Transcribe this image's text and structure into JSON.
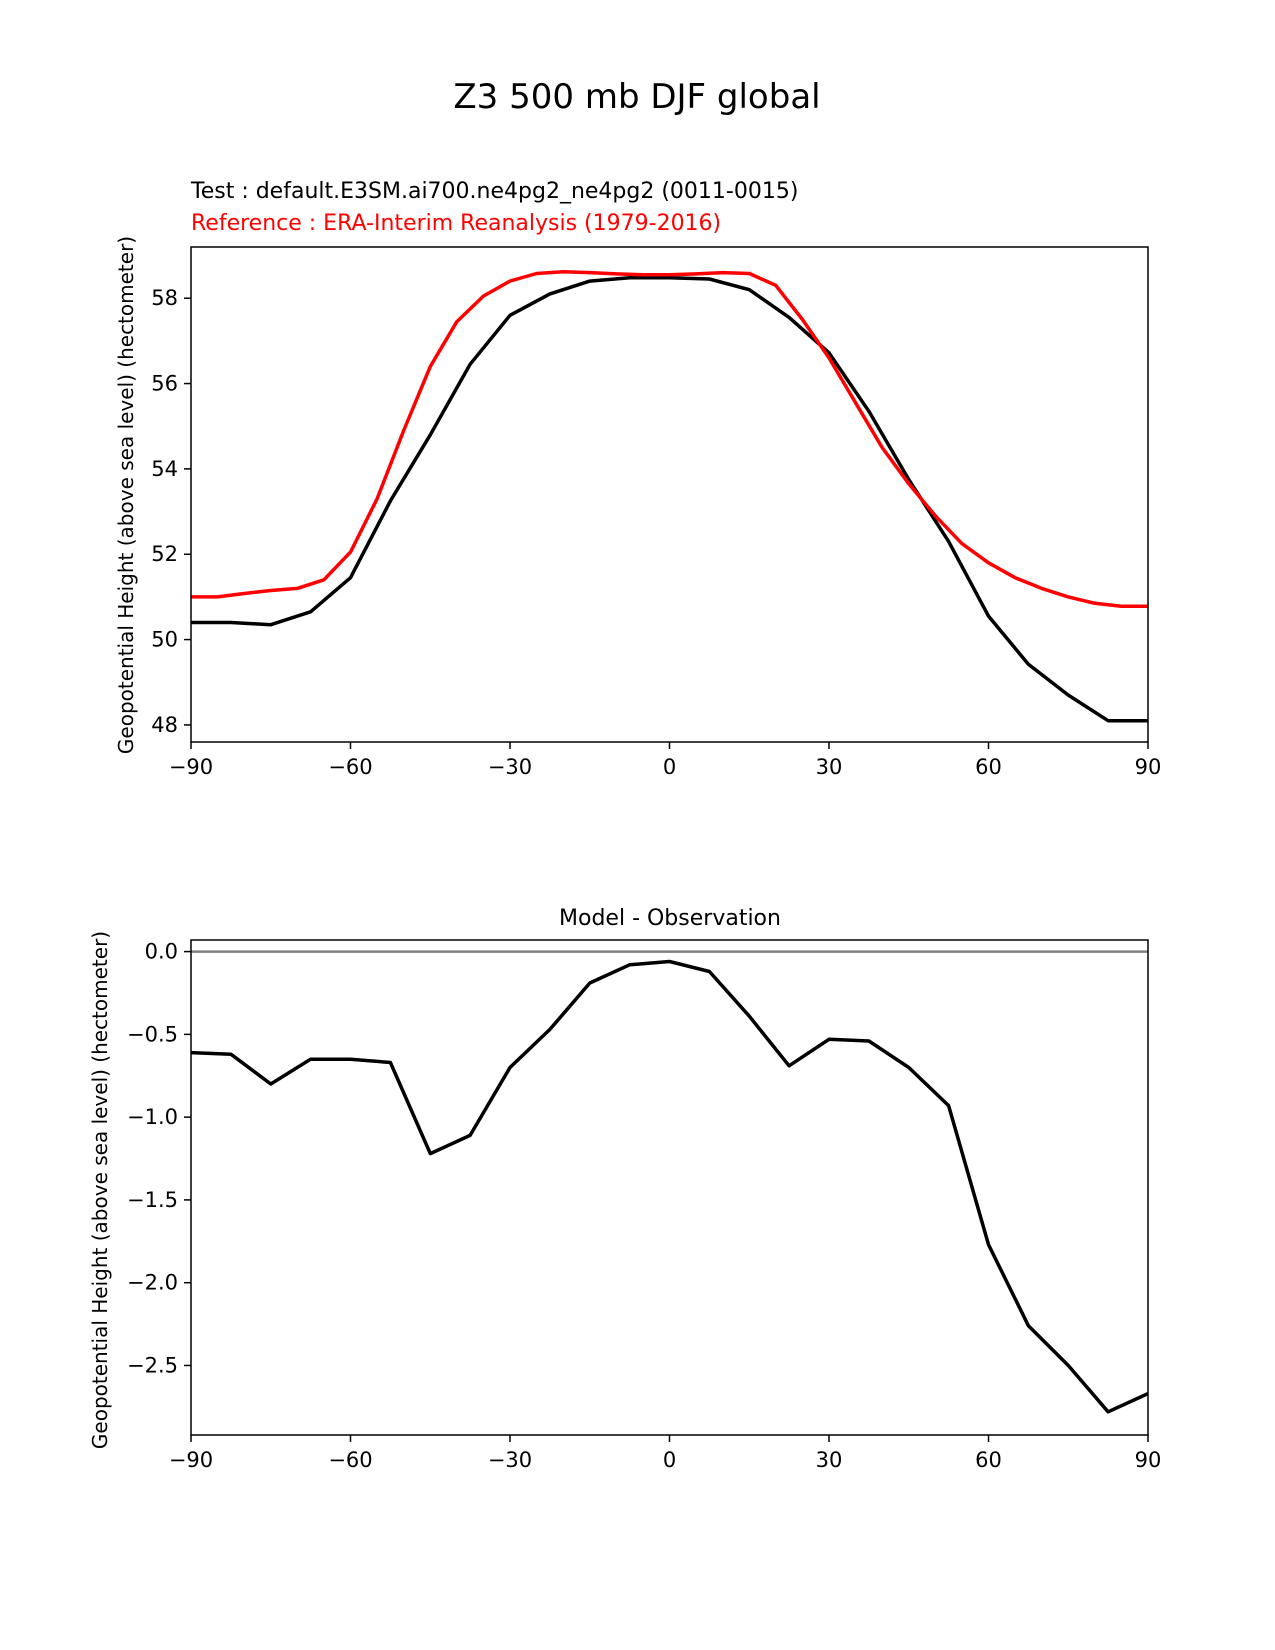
{
  "figure": {
    "title": "Z3 500 mb DJF global"
  },
  "chart_data": [
    {
      "type": "line",
      "title": "",
      "test_label": "Test : default.E3SM.ai700.ne4pg2_ne4pg2 (0011-0015)",
      "reference_label": "Reference : ERA-Interim Reanalysis (1979-2016)",
      "xlabel": "",
      "ylabel": "Geopotential Height (above sea level) (hectometer)",
      "xlim": [
        -90,
        90
      ],
      "ylim": [
        47.6,
        59.2
      ],
      "xticks": [
        -90,
        -60,
        -30,
        0,
        30,
        60,
        90
      ],
      "xtick_labels": [
        "−90",
        "−60",
        "−30",
        "0",
        "30",
        "60",
        "90"
      ],
      "yticks": [
        48,
        50,
        52,
        54,
        56,
        58
      ],
      "ytick_labels": [
        "48",
        "50",
        "52",
        "54",
        "56",
        "58"
      ],
      "series": [
        {
          "name": "Test",
          "color": "#000000",
          "x": [
            -90,
            -82.5,
            -75,
            -67.5,
            -60,
            -52.5,
            -45,
            -37.5,
            -30,
            -22.5,
            -15,
            -7.5,
            0,
            7.5,
            15,
            22.5,
            30,
            37.5,
            45,
            52.5,
            60,
            67.5,
            75,
            82.5,
            90
          ],
          "y": [
            50.4,
            50.4,
            50.35,
            50.65,
            51.45,
            53.25,
            54.8,
            56.45,
            57.6,
            58.1,
            58.4,
            58.48,
            58.48,
            58.45,
            58.2,
            57.55,
            56.72,
            55.35,
            53.75,
            52.3,
            50.55,
            49.42,
            48.7,
            48.1,
            48.1
          ]
        },
        {
          "name": "Reference",
          "color": "#ff0000",
          "x": [
            -90,
            -85,
            -80,
            -75,
            -70,
            -65,
            -60,
            -55,
            -50,
            -45,
            -40,
            -35,
            -30,
            -25,
            -20,
            -15,
            -10,
            -5,
            0,
            5,
            10,
            15,
            20,
            25,
            30,
            35,
            40,
            45,
            50,
            55,
            60,
            65,
            70,
            75,
            80,
            85,
            90
          ],
          "y": [
            51.0,
            51.0,
            51.08,
            51.15,
            51.2,
            51.4,
            52.05,
            53.3,
            54.9,
            56.4,
            57.45,
            58.05,
            58.4,
            58.58,
            58.62,
            58.6,
            58.57,
            58.55,
            58.55,
            58.57,
            58.6,
            58.58,
            58.3,
            57.5,
            56.6,
            55.55,
            54.5,
            53.65,
            52.9,
            52.25,
            51.8,
            51.45,
            51.2,
            51.0,
            50.85,
            50.78,
            50.78
          ]
        }
      ]
    },
    {
      "type": "line",
      "title": "Model - Observation",
      "xlabel": "",
      "ylabel": "Geopotential Height (above sea level) (hectometer)",
      "xlim": [
        -90,
        90
      ],
      "ylim": [
        -2.92,
        0.07
      ],
      "xticks": [
        -90,
        -60,
        -30,
        0,
        30,
        60,
        90
      ],
      "xtick_labels": [
        "−90",
        "−60",
        "−30",
        "0",
        "30",
        "60",
        "90"
      ],
      "yticks": [
        0.0,
        -0.5,
        -1.0,
        -1.5,
        -2.0,
        -2.5
      ],
      "ytick_labels": [
        "0.0",
        "−0.5",
        "−1.0",
        "−1.5",
        "−2.0",
        "−2.5"
      ],
      "zero_line_color": "#808080",
      "series": [
        {
          "name": "Model - Observation",
          "color": "#000000",
          "x": [
            -90,
            -82.5,
            -75,
            -67.5,
            -60,
            -52.5,
            -45,
            -37.5,
            -30,
            -22.5,
            -15,
            -7.5,
            0,
            7.5,
            15,
            22.5,
            30,
            37.5,
            45,
            52.5,
            60,
            67.5,
            75,
            82.5,
            90
          ],
          "y": [
            -0.61,
            -0.62,
            -0.8,
            -0.65,
            -0.65,
            -0.67,
            -1.22,
            -1.11,
            -0.7,
            -0.47,
            -0.19,
            -0.08,
            -0.06,
            -0.12,
            -0.39,
            -0.69,
            -0.53,
            -0.54,
            -0.7,
            -0.93,
            -1.77,
            -2.26,
            -2.5,
            -2.78,
            -2.67
          ]
        }
      ]
    }
  ]
}
